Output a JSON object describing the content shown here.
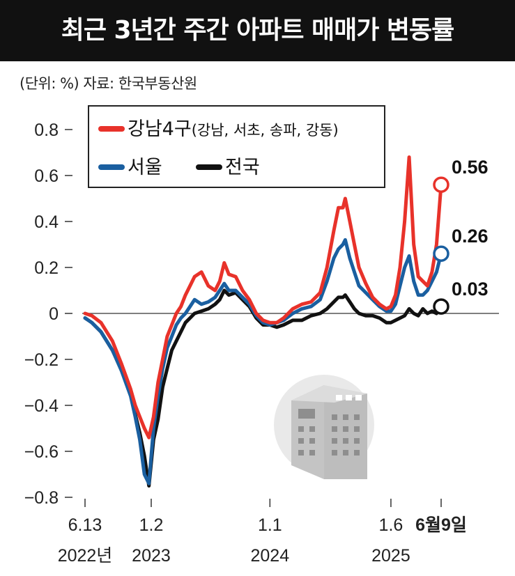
{
  "title": "최근 3년간 주간 아파트 매매가 변동률",
  "unit_source": "(단위: %)  자료: 한국부동산원",
  "colors": {
    "gangnam": "#e8322a",
    "seoul": "#1a5fa0",
    "national": "#111111",
    "title_bg": "#111111",
    "zero_line": "#555555"
  },
  "chart_data": {
    "type": "line",
    "title": "최근 3년간 주간 아파트 매매가 변동률",
    "ylabel": "(단위: %)",
    "ylim": [
      -0.8,
      0.8
    ],
    "yticks": [
      0.8,
      0.6,
      0.4,
      0.2,
      0,
      -0.2,
      -0.4,
      -0.6,
      -0.8
    ],
    "ytick_labels": [
      "0.8",
      "0.6",
      "0.4",
      "0.2",
      "0",
      "−0.2",
      "−0.4",
      "−0.6",
      "−0.8"
    ],
    "grid": false,
    "legend_position": "top",
    "x_ticks": [
      {
        "x": "2022-06-13",
        "line1": "6.13",
        "line2": "2022년"
      },
      {
        "x": "2023-01-02",
        "line1": "1.2",
        "line2": "2023"
      },
      {
        "x": "2024-01-01",
        "line1": "1.1",
        "line2": "2024"
      },
      {
        "x": "2025-01-06",
        "line1": "1.6",
        "line2": "2025"
      },
      {
        "x": "2025-06-09",
        "line1": "6월9일",
        "line2": ""
      }
    ],
    "series": [
      {
        "key": "gangnam",
        "name": "강남4구",
        "name_detail": "(강남, 서초, 송파, 강동)",
        "end_label": "0.56",
        "points": [
          [
            "2022-06-13",
            0.0
          ],
          [
            "2022-07-04",
            -0.01
          ],
          [
            "2022-08-01",
            -0.04
          ],
          [
            "2022-09-05",
            -0.12
          ],
          [
            "2022-10-03",
            -0.22
          ],
          [
            "2022-10-31",
            -0.33
          ],
          [
            "2022-11-14",
            -0.4
          ],
          [
            "2022-11-28",
            -0.45
          ],
          [
            "2022-12-12",
            -0.5
          ],
          [
            "2022-12-26",
            -0.54
          ],
          [
            "2023-01-09",
            -0.45
          ],
          [
            "2023-01-23",
            -0.3
          ],
          [
            "2023-02-06",
            -0.2
          ],
          [
            "2023-02-20",
            -0.1
          ],
          [
            "2023-03-06",
            -0.05
          ],
          [
            "2023-03-20",
            0.0
          ],
          [
            "2023-04-03",
            0.03
          ],
          [
            "2023-04-17",
            0.08
          ],
          [
            "2023-05-01",
            0.12
          ],
          [
            "2023-05-15",
            0.16
          ],
          [
            "2023-06-05",
            0.18
          ],
          [
            "2023-06-26",
            0.12
          ],
          [
            "2023-07-17",
            0.1
          ],
          [
            "2023-07-31",
            0.14
          ],
          [
            "2023-08-14",
            0.22
          ],
          [
            "2023-08-28",
            0.17
          ],
          [
            "2023-09-18",
            0.16
          ],
          [
            "2023-10-09",
            0.1
          ],
          [
            "2023-10-30",
            0.06
          ],
          [
            "2023-11-20",
            0.0
          ],
          [
            "2023-12-11",
            -0.03
          ],
          [
            "2024-01-01",
            -0.04
          ],
          [
            "2024-01-22",
            -0.04
          ],
          [
            "2024-02-12",
            -0.02
          ],
          [
            "2024-03-11",
            0.02
          ],
          [
            "2024-04-08",
            0.04
          ],
          [
            "2024-05-06",
            0.05
          ],
          [
            "2024-06-03",
            0.09
          ],
          [
            "2024-06-24",
            0.2
          ],
          [
            "2024-07-15",
            0.36
          ],
          [
            "2024-07-29",
            0.46
          ],
          [
            "2024-08-12",
            0.46
          ],
          [
            "2024-08-19",
            0.5
          ],
          [
            "2024-09-02",
            0.4
          ],
          [
            "2024-09-16",
            0.3
          ],
          [
            "2024-09-30",
            0.2
          ],
          [
            "2024-10-21",
            0.13
          ],
          [
            "2024-11-11",
            0.07
          ],
          [
            "2024-12-02",
            0.04
          ],
          [
            "2024-12-23",
            0.02
          ],
          [
            "2025-01-06",
            0.03
          ],
          [
            "2025-01-20",
            0.08
          ],
          [
            "2025-02-03",
            0.2
          ],
          [
            "2025-02-17",
            0.4
          ],
          [
            "2025-03-03",
            0.68
          ],
          [
            "2025-03-17",
            0.3
          ],
          [
            "2025-03-31",
            0.16
          ],
          [
            "2025-04-14",
            0.14
          ],
          [
            "2025-04-28",
            0.12
          ],
          [
            "2025-05-12",
            0.18
          ],
          [
            "2025-05-26",
            0.3
          ],
          [
            "2025-06-09",
            0.56
          ]
        ]
      },
      {
        "key": "seoul",
        "name": "서울",
        "name_detail": "",
        "end_label": "0.26",
        "points": [
          [
            "2022-06-13",
            -0.02
          ],
          [
            "2022-07-04",
            -0.04
          ],
          [
            "2022-08-01",
            -0.08
          ],
          [
            "2022-09-05",
            -0.16
          ],
          [
            "2022-10-03",
            -0.25
          ],
          [
            "2022-10-31",
            -0.36
          ],
          [
            "2022-11-14",
            -0.45
          ],
          [
            "2022-11-28",
            -0.55
          ],
          [
            "2022-12-12",
            -0.7
          ],
          [
            "2022-12-26",
            -0.74
          ],
          [
            "2023-01-09",
            -0.5
          ],
          [
            "2023-01-23",
            -0.36
          ],
          [
            "2023-02-06",
            -0.24
          ],
          [
            "2023-02-20",
            -0.15
          ],
          [
            "2023-03-06",
            -0.1
          ],
          [
            "2023-03-20",
            -0.05
          ],
          [
            "2023-04-03",
            -0.02
          ],
          [
            "2023-04-17",
            0.0
          ],
          [
            "2023-05-01",
            0.03
          ],
          [
            "2023-05-15",
            0.06
          ],
          [
            "2023-06-05",
            0.04
          ],
          [
            "2023-06-26",
            0.05
          ],
          [
            "2023-07-17",
            0.07
          ],
          [
            "2023-07-31",
            0.1
          ],
          [
            "2023-08-14",
            0.13
          ],
          [
            "2023-08-28",
            0.1
          ],
          [
            "2023-09-18",
            0.1
          ],
          [
            "2023-10-09",
            0.07
          ],
          [
            "2023-10-30",
            0.04
          ],
          [
            "2023-11-20",
            -0.01
          ],
          [
            "2023-12-11",
            -0.04
          ],
          [
            "2024-01-01",
            -0.05
          ],
          [
            "2024-01-22",
            -0.04
          ],
          [
            "2024-02-12",
            -0.03
          ],
          [
            "2024-03-11",
            0.0
          ],
          [
            "2024-04-08",
            0.02
          ],
          [
            "2024-05-06",
            0.03
          ],
          [
            "2024-06-03",
            0.06
          ],
          [
            "2024-06-24",
            0.14
          ],
          [
            "2024-07-15",
            0.24
          ],
          [
            "2024-07-29",
            0.28
          ],
          [
            "2024-08-12",
            0.3
          ],
          [
            "2024-08-19",
            0.32
          ],
          [
            "2024-09-02",
            0.24
          ],
          [
            "2024-09-16",
            0.18
          ],
          [
            "2024-09-30",
            0.12
          ],
          [
            "2024-10-21",
            0.09
          ],
          [
            "2024-11-11",
            0.06
          ],
          [
            "2024-12-02",
            0.03
          ],
          [
            "2024-12-23",
            0.01
          ],
          [
            "2025-01-06",
            0.01
          ],
          [
            "2025-01-20",
            0.04
          ],
          [
            "2025-02-03",
            0.12
          ],
          [
            "2025-02-17",
            0.2
          ],
          [
            "2025-03-03",
            0.25
          ],
          [
            "2025-03-17",
            0.14
          ],
          [
            "2025-03-31",
            0.08
          ],
          [
            "2025-04-14",
            0.08
          ],
          [
            "2025-04-28",
            0.1
          ],
          [
            "2025-05-12",
            0.14
          ],
          [
            "2025-05-26",
            0.18
          ],
          [
            "2025-06-09",
            0.26
          ]
        ]
      },
      {
        "key": "national",
        "name": "전국",
        "name_detail": "",
        "end_label": "0.03",
        "points": [
          [
            "2022-06-13",
            -0.02
          ],
          [
            "2022-07-04",
            -0.04
          ],
          [
            "2022-08-01",
            -0.08
          ],
          [
            "2022-09-05",
            -0.16
          ],
          [
            "2022-10-03",
            -0.24
          ],
          [
            "2022-10-31",
            -0.34
          ],
          [
            "2022-11-14",
            -0.44
          ],
          [
            "2022-11-28",
            -0.52
          ],
          [
            "2022-12-12",
            -0.62
          ],
          [
            "2022-12-26",
            -0.75
          ],
          [
            "2023-01-09",
            -0.55
          ],
          [
            "2023-01-23",
            -0.46
          ],
          [
            "2023-02-06",
            -0.32
          ],
          [
            "2023-02-20",
            -0.24
          ],
          [
            "2023-03-06",
            -0.16
          ],
          [
            "2023-03-20",
            -0.12
          ],
          [
            "2023-04-03",
            -0.08
          ],
          [
            "2023-04-17",
            -0.04
          ],
          [
            "2023-05-01",
            -0.02
          ],
          [
            "2023-05-15",
            0.0
          ],
          [
            "2023-06-05",
            0.01
          ],
          [
            "2023-06-26",
            0.02
          ],
          [
            "2023-07-17",
            0.04
          ],
          [
            "2023-07-31",
            0.06
          ],
          [
            "2023-08-14",
            0.1
          ],
          [
            "2023-08-28",
            0.08
          ],
          [
            "2023-09-18",
            0.09
          ],
          [
            "2023-10-09",
            0.06
          ],
          [
            "2023-10-30",
            0.03
          ],
          [
            "2023-11-20",
            -0.02
          ],
          [
            "2023-12-11",
            -0.05
          ],
          [
            "2024-01-01",
            -0.05
          ],
          [
            "2024-01-22",
            -0.06
          ],
          [
            "2024-02-12",
            -0.05
          ],
          [
            "2024-03-11",
            -0.03
          ],
          [
            "2024-04-08",
            -0.03
          ],
          [
            "2024-05-06",
            -0.01
          ],
          [
            "2024-06-03",
            0.0
          ],
          [
            "2024-06-24",
            0.02
          ],
          [
            "2024-07-15",
            0.05
          ],
          [
            "2024-07-29",
            0.07
          ],
          [
            "2024-08-12",
            0.07
          ],
          [
            "2024-08-19",
            0.08
          ],
          [
            "2024-09-02",
            0.05
          ],
          [
            "2024-09-16",
            0.02
          ],
          [
            "2024-09-30",
            0.0
          ],
          [
            "2024-10-21",
            -0.01
          ],
          [
            "2024-11-11",
            -0.01
          ],
          [
            "2024-12-02",
            -0.02
          ],
          [
            "2024-12-23",
            -0.04
          ],
          [
            "2025-01-06",
            -0.04
          ],
          [
            "2025-01-20",
            -0.03
          ],
          [
            "2025-02-03",
            -0.02
          ],
          [
            "2025-02-17",
            -0.01
          ],
          [
            "2025-03-03",
            0.02
          ],
          [
            "2025-03-17",
            0.0
          ],
          [
            "2025-03-31",
            -0.01
          ],
          [
            "2025-04-14",
            0.02
          ],
          [
            "2025-04-28",
            0.0
          ],
          [
            "2025-05-12",
            0.01
          ],
          [
            "2025-05-26",
            0.0
          ],
          [
            "2025-06-09",
            0.03
          ]
        ]
      }
    ]
  }
}
